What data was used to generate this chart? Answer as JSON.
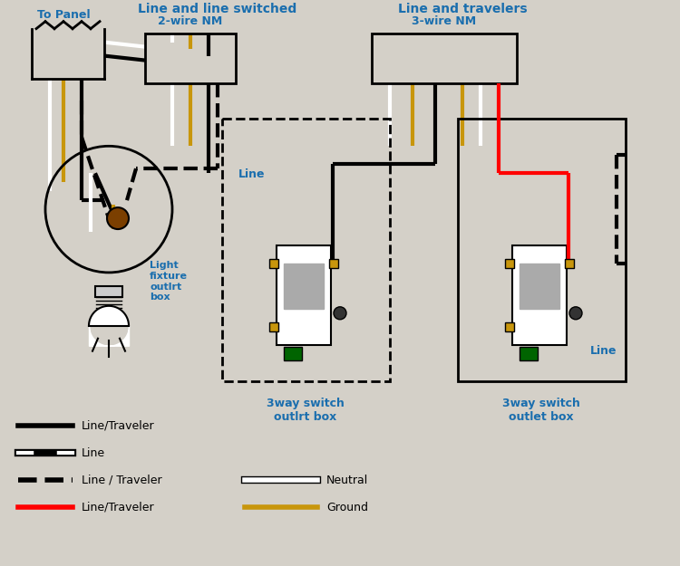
{
  "bg_color": "#d4d0c8",
  "title_color": "#1a6eae",
  "wire_black": "#000000",
  "wire_white": "#ffffff",
  "wire_red": "#ff0000",
  "wire_gold": "#c8960c",
  "wire_brown": "#7B3F00",
  "wire_green": "#006400",
  "box_outline": "#000000",
  "text_color": "#1a6eae",
  "label_panel": "To Panel",
  "label_2wire": "2-wire NM",
  "label_3wire": "3-wire NM",
  "label_line_switched": "Line and line switched",
  "label_line_travelers": "Line and travelers",
  "label_light_box": "Light\nfixture\noutlrt\nbox",
  "label_switch1": "3way switch\noutlrt box",
  "label_switch2": "3way switch\noutlet box",
  "label_line1": "Line",
  "label_line2": "Line",
  "legend": [
    {
      "color": "#000000",
      "style": "solid",
      "label": "Line/Traveler"
    },
    {
      "color": "#ffffff",
      "style": "solid_black_center",
      "label": "Line"
    },
    {
      "color": "#000000",
      "style": "dashed",
      "label": "Line / Traveler"
    },
    {
      "color": "#ff0000",
      "style": "solid",
      "label": "Line/Traveler"
    },
    {
      "color": "#ffffff",
      "style": "solid",
      "label": "Neutral"
    },
    {
      "color": "#c8960c",
      "style": "solid",
      "label": "Ground"
    }
  ]
}
